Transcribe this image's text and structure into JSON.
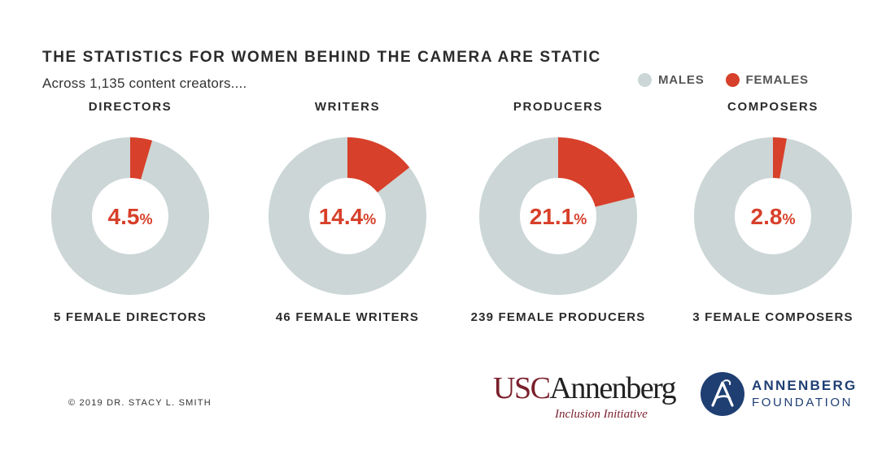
{
  "header": {
    "title": "THE STATISTICS FOR WOMEN BEHIND THE CAMERA ARE STATIC",
    "subtitle": "Across 1,135 content creators...."
  },
  "legend": {
    "males_label": "MALES",
    "females_label": "FEMALES",
    "males_color": "#ccd6d6",
    "females_color": "#d7402a"
  },
  "chart_data": [
    {
      "type": "pie",
      "title": "DIRECTORS",
      "categories": [
        "FEMALES",
        "MALES"
      ],
      "values": [
        4.5,
        95.5
      ],
      "center_label": "4.5",
      "unit": "%",
      "caption": "5 FEMALE DIRECTORS"
    },
    {
      "type": "pie",
      "title": "WRITERS",
      "categories": [
        "FEMALES",
        "MALES"
      ],
      "values": [
        14.4,
        85.6
      ],
      "center_label": "14.4",
      "unit": "%",
      "caption": "46 FEMALE WRITERS"
    },
    {
      "type": "pie",
      "title": "PRODUCERS",
      "categories": [
        "FEMALES",
        "MALES"
      ],
      "values": [
        21.1,
        78.9
      ],
      "center_label": "21.1",
      "unit": "%",
      "caption": "239 FEMALE PRODUCERS"
    },
    {
      "type": "pie",
      "title": "COMPOSERS",
      "categories": [
        "FEMALES",
        "MALES"
      ],
      "values": [
        2.8,
        97.2
      ],
      "center_label": "2.8",
      "unit": "%",
      "caption": "3 FEMALE COMPOSERS"
    }
  ],
  "footer": {
    "copyright": "© 2019 DR. STACY L. SMITH",
    "usc_logo": {
      "part1": "USC",
      "part2": "Annenberg",
      "sub": "Inclusion Initiative",
      "color1": "#7a1f2b",
      "color2": "#222222"
    },
    "foundation_logo": {
      "line1": "ANNENBERG",
      "line2": "FOUNDATION",
      "color": "#1f3f73",
      "icon": "annenberg-seal-icon"
    }
  }
}
